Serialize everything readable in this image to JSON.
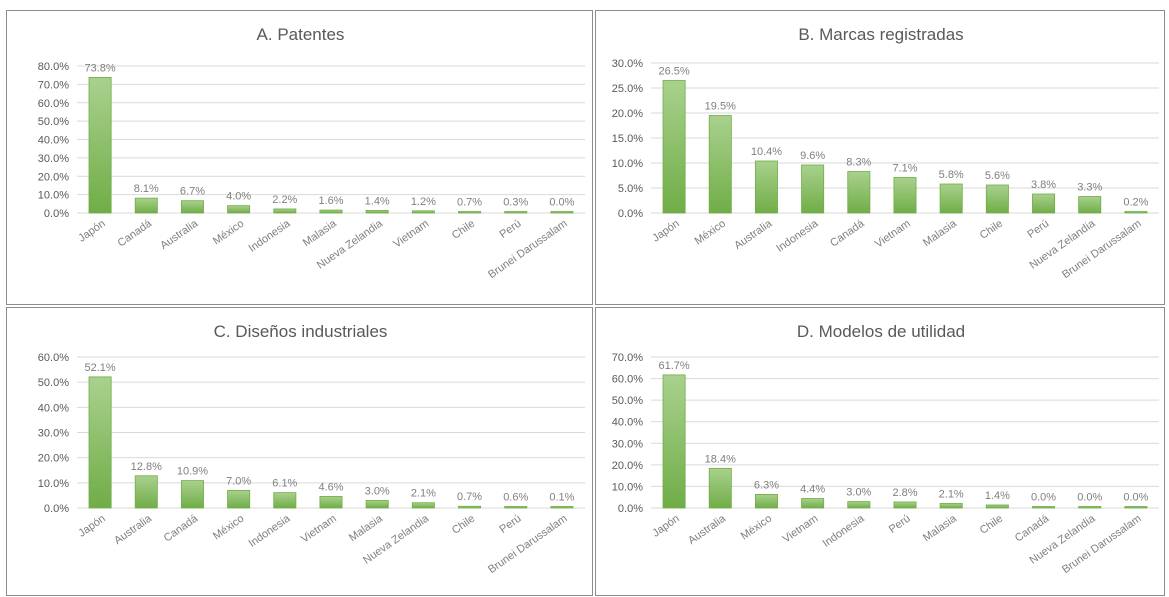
{
  "colors": {
    "bar_top": "#a9d18e",
    "bar_bottom": "#70ad47",
    "bar_stroke": "#70ad47",
    "grid": "#d9d9d9",
    "text": "#595959"
  },
  "chart_data": [
    {
      "type": "bar",
      "title": "A. Patentes",
      "categories": [
        "Japón",
        "Canadá",
        "Australia",
        "México",
        "Indonesia",
        "Malasia",
        "Nueva Zelandia",
        "Vietnam",
        "Chile",
        "Perú",
        "Brunei Darussalam"
      ],
      "values": [
        73.8,
        8.1,
        6.7,
        4.0,
        2.2,
        1.6,
        1.4,
        1.2,
        0.7,
        0.3,
        0.0
      ],
      "data_labels": [
        "73.8%",
        "8.1%",
        "6.7%",
        "4.0%",
        "2.2%",
        "1.6%",
        "1.4%",
        "1.2%",
        "0.7%",
        "0.3%",
        "0.0%"
      ],
      "y_ticks": [
        "0.0%",
        "10.0%",
        "20.0%",
        "30.0%",
        "40.0%",
        "50.0%",
        "60.0%",
        "70.0%",
        "80.0%"
      ],
      "ylim": [
        0,
        80
      ],
      "grid": true
    },
    {
      "type": "bar",
      "title": "B. Marcas registradas",
      "categories": [
        "Japón",
        "México",
        "Australia",
        "Indonesia",
        "Canadá",
        "Vietnam",
        "Malasia",
        "Chile",
        "Perú",
        "Nueva Zelandia",
        "Brunei Darussalam"
      ],
      "values": [
        26.5,
        19.5,
        10.4,
        9.6,
        8.3,
        7.1,
        5.8,
        5.6,
        3.8,
        3.3,
        0.2
      ],
      "data_labels": [
        "26.5%",
        "19.5%",
        "10.4%",
        "9.6%",
        "8.3%",
        "7.1%",
        "5.8%",
        "5.6%",
        "3.8%",
        "3.3%",
        "0.2%"
      ],
      "y_ticks": [
        "0.0%",
        "5.0%",
        "10.0%",
        "15.0%",
        "20.0%",
        "25.0%",
        "30.0%"
      ],
      "ylim": [
        0,
        30
      ],
      "grid": true
    },
    {
      "type": "bar",
      "title": "C. Diseños industriales",
      "categories": [
        "Japón",
        "Australia",
        "Canadá",
        "México",
        "Indonesia",
        "Vietnam",
        "Malasia",
        "Nueva Zelandia",
        "Chile",
        "Perú",
        "Brunei Darussalam"
      ],
      "values": [
        52.1,
        12.8,
        10.9,
        7.0,
        6.1,
        4.6,
        3.0,
        2.1,
        0.7,
        0.6,
        0.1
      ],
      "data_labels": [
        "52.1%",
        "12.8%",
        "10.9%",
        "7.0%",
        "6.1%",
        "4.6%",
        "3.0%",
        "2.1%",
        "0.7%",
        "0.6%",
        "0.1%"
      ],
      "y_ticks": [
        "0.0%",
        "10.0%",
        "20.0%",
        "30.0%",
        "40.0%",
        "50.0%",
        "60.0%"
      ],
      "ylim": [
        0,
        60
      ],
      "grid": true
    },
    {
      "type": "bar",
      "title": "D. Modelos de utilidad",
      "categories": [
        "Japón",
        "Australia",
        "México",
        "Vietnam",
        "Indonesia",
        "Perú",
        "Malasia",
        "Chile",
        "Canadá",
        "Nueva Zelandia",
        "Brunei Darussalam"
      ],
      "values": [
        61.7,
        18.4,
        6.3,
        4.4,
        3.0,
        2.8,
        2.1,
        1.4,
        0.0,
        0.0,
        0.0
      ],
      "data_labels": [
        "61.7%",
        "18.4%",
        "6.3%",
        "4.4%",
        "3.0%",
        "2.8%",
        "2.1%",
        "1.4%",
        "0.0%",
        "0.0%",
        "0.0%"
      ],
      "y_ticks": [
        "0.0%",
        "10.0%",
        "20.0%",
        "30.0%",
        "40.0%",
        "50.0%",
        "60.0%",
        "70.0%"
      ],
      "ylim": [
        0,
        70
      ],
      "grid": true
    }
  ]
}
